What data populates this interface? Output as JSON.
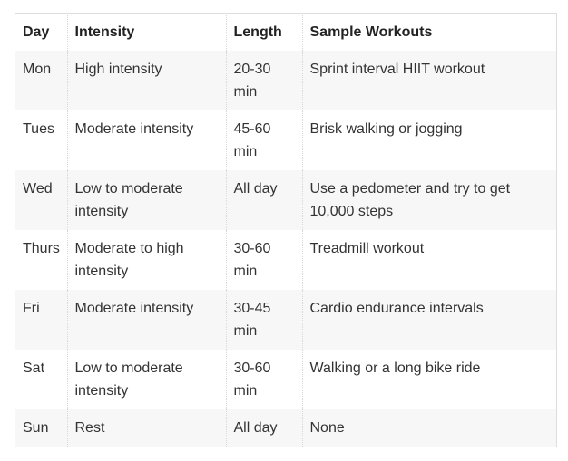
{
  "table": {
    "headers": [
      "Day",
      "Intensity",
      "Length",
      "Sample Workouts"
    ],
    "rows": [
      [
        "Mon",
        "High intensity",
        "20-30 min",
        "Sprint interval HIIT workout"
      ],
      [
        "Tues",
        "Moderate intensity",
        "45-60 min",
        "Brisk walking or jogging"
      ],
      [
        "Wed",
        "Low to moderate intensity",
        "All day",
        "Use a pedometer and try to get 10,000 steps"
      ],
      [
        "Thurs",
        "Moderate to high intensity",
        "30-60 min",
        "Treadmill workout"
      ],
      [
        "Fri",
        "Moderate intensity",
        "30-45 min",
        "Cardio endurance intervals"
      ],
      [
        "Sat",
        "Low to moderate intensity",
        "30-60 min",
        "Walking or a long bike ride"
      ],
      [
        "Sun",
        "Rest",
        "All day",
        "None"
      ]
    ]
  },
  "colors": {
    "stripe": "#f7f7f7",
    "border": "#dddddd",
    "text": "#333333"
  }
}
